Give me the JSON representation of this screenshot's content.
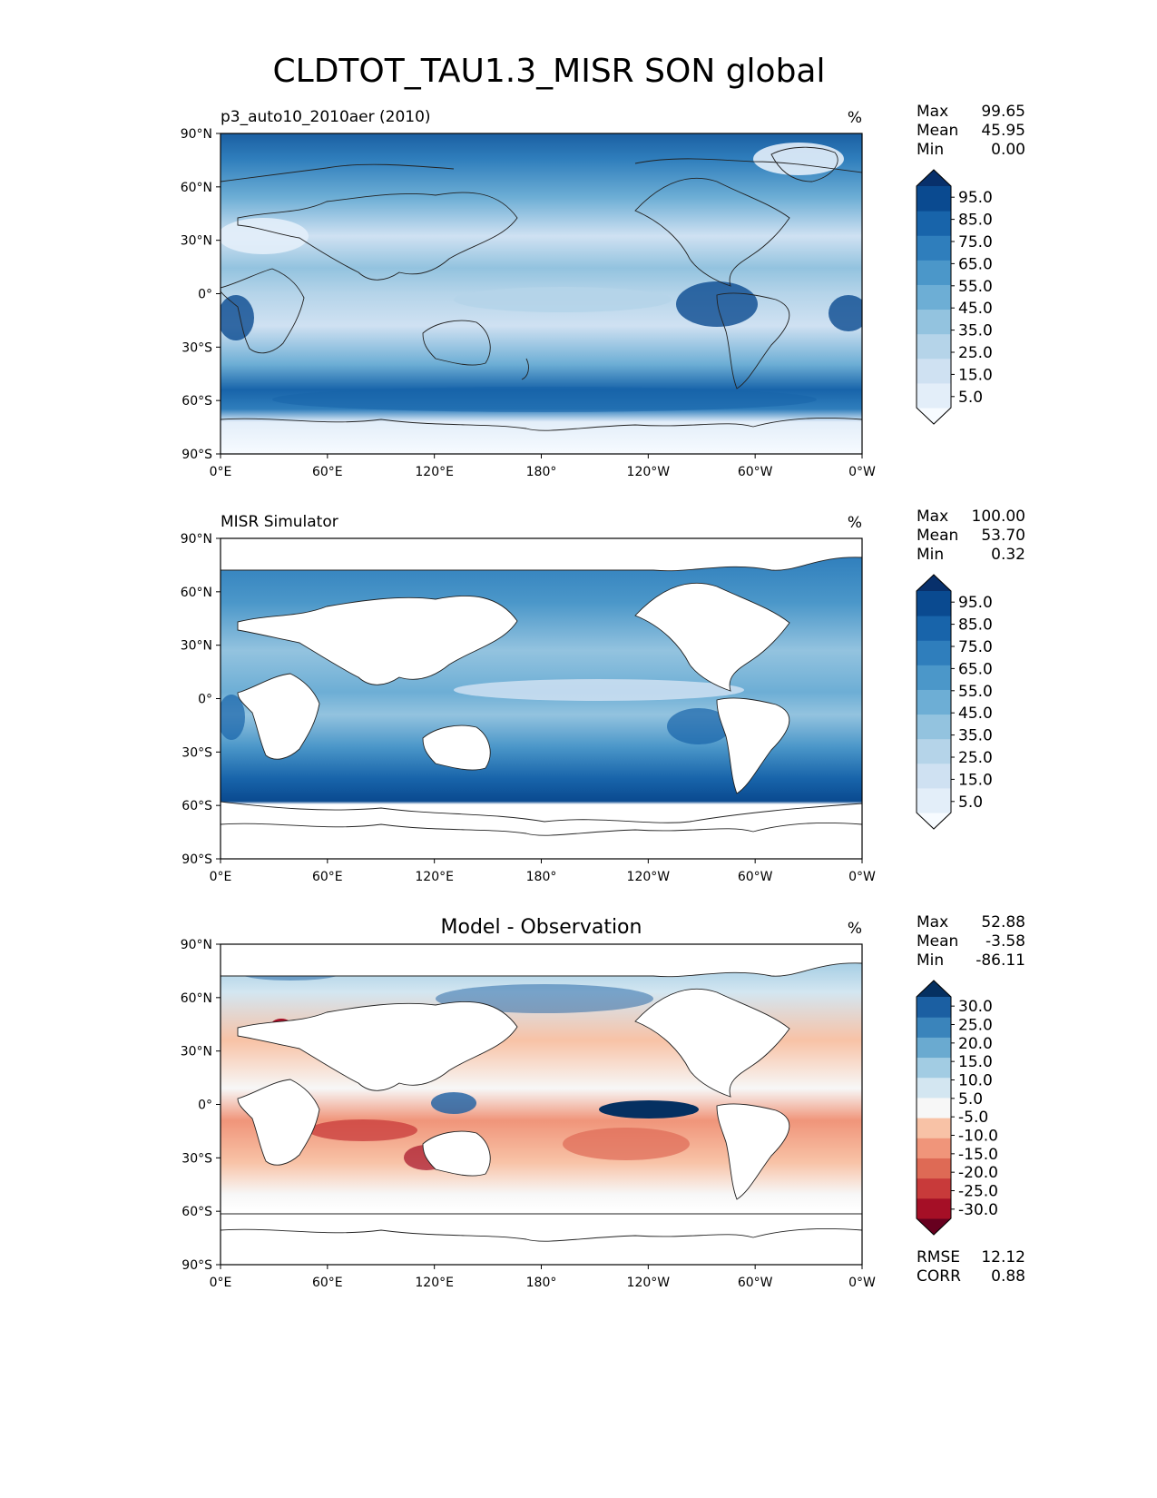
{
  "title": "CLDTOT_TAU1.3_MISR SON global",
  "axes": {
    "lat_ticks": [
      "90°N",
      "60°N",
      "30°N",
      "0°",
      "30°S",
      "60°S",
      "90°S"
    ],
    "lon_ticks": [
      "0°E",
      "60°E",
      "120°E",
      "180°",
      "120°W",
      "60°W",
      "0°W"
    ]
  },
  "chart_data": [
    {
      "type": "heatmap",
      "panel": "model",
      "left_title": "p3_auto10_2010aer (2010)",
      "center_title": "",
      "units": "%",
      "stats": [
        {
          "label": "Max",
          "value": "99.65"
        },
        {
          "label": "Mean",
          "value": "45.95"
        },
        {
          "label": "Min",
          "value": "0.00"
        }
      ],
      "colorbar": {
        "ticks": [
          "95.0",
          "85.0",
          "75.0",
          "65.0",
          "55.0",
          "45.0",
          "35.0",
          "25.0",
          "15.0",
          "5.0"
        ],
        "colors": [
          "#f7fbff",
          "#e3eef9",
          "#cfe1f2",
          "#b5d4e9",
          "#93c3df",
          "#6daed5",
          "#4b97c9",
          "#2f7ebc",
          "#1864aa",
          "#0a4a90",
          "#08306b"
        ]
      },
      "xlim": [
        0,
        360
      ],
      "ylim": [
        -90,
        90
      ]
    },
    {
      "type": "heatmap",
      "panel": "observation",
      "left_title": "MISR Simulator",
      "center_title": "",
      "units": "%",
      "stats": [
        {
          "label": "Max",
          "value": "100.00"
        },
        {
          "label": "Mean",
          "value": "53.70"
        },
        {
          "label": "Min",
          "value": "0.32"
        }
      ],
      "colorbar": {
        "ticks": [
          "95.0",
          "85.0",
          "75.0",
          "65.0",
          "55.0",
          "45.0",
          "35.0",
          "25.0",
          "15.0",
          "5.0"
        ],
        "colors": [
          "#f7fbff",
          "#e3eef9",
          "#cfe1f2",
          "#b5d4e9",
          "#93c3df",
          "#6daed5",
          "#4b97c9",
          "#2f7ebc",
          "#1864aa",
          "#0a4a90",
          "#08306b"
        ]
      },
      "xlim": [
        0,
        360
      ],
      "ylim": [
        -90,
        90
      ]
    },
    {
      "type": "heatmap",
      "panel": "difference",
      "left_title": "",
      "center_title": "Model - Observation",
      "units": "%",
      "stats": [
        {
          "label": "Max",
          "value": "52.88"
        },
        {
          "label": "Mean",
          "value": "-3.58"
        },
        {
          "label": "Min",
          "value": "-86.11"
        }
      ],
      "colorbar": {
        "ticks": [
          "30.0",
          "25.0",
          "20.0",
          "15.0",
          "10.0",
          "5.0",
          "-5.0",
          "-10.0",
          "-15.0",
          "-20.0",
          "-25.0",
          "-30.0"
        ],
        "colors": [
          "#67001f",
          "#a50f26",
          "#c83a3a",
          "#de6a55",
          "#f0957a",
          "#f8c2a6",
          "#f7f7f7",
          "#d3e6f1",
          "#a2cce3",
          "#6aaad0",
          "#3a84bb",
          "#1b5fa2",
          "#053061"
        ]
      },
      "metrics": [
        {
          "label": "RMSE",
          "value": "12.12"
        },
        {
          "label": "CORR",
          "value": "0.88"
        }
      ],
      "xlim": [
        0,
        360
      ],
      "ylim": [
        -90,
        90
      ]
    }
  ]
}
